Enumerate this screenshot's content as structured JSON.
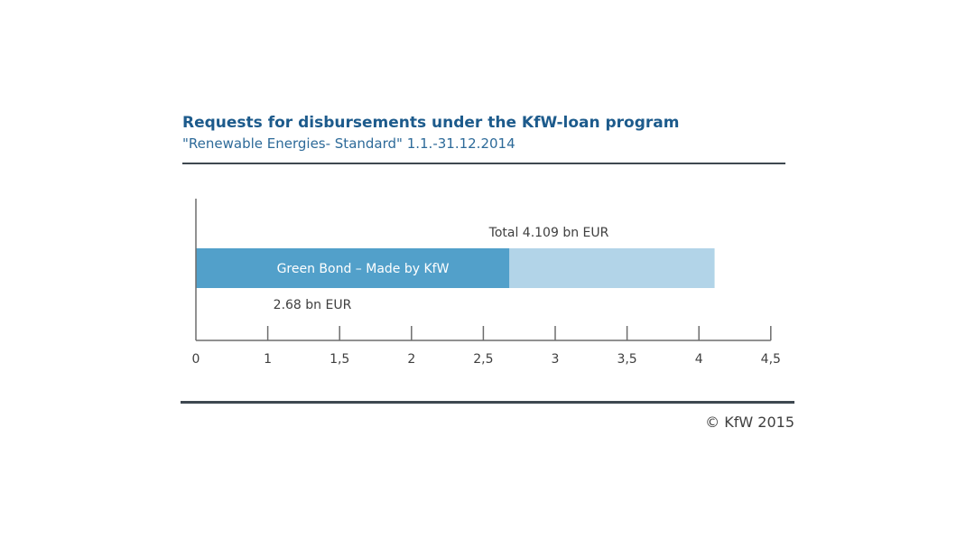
{
  "title": "Requests for disbursements under the KfW-loan program",
  "subtitle": "\"Renewable Energies- Standard\" 1.1.-31.12.2014",
  "copyright": "© KfW 2015",
  "colors": {
    "title": "#1d5b8c",
    "subtitle": "#2d6a99",
    "rule": "#3e4850",
    "axis": "#6d6d6d",
    "text": "#3f3f3f",
    "bar_total": "#b2d4e8",
    "bar_green_bond": "#52a0ca",
    "bar_label": "#ffffff"
  },
  "chart_data": {
    "type": "bar",
    "orientation": "horizontal",
    "stacked": "overlay",
    "xlim": [
      0,
      4.5
    ],
    "ticks": [
      0,
      1,
      1.5,
      2,
      2.5,
      3,
      3.5,
      4,
      4.5
    ],
    "tick_labels": [
      "0",
      "1",
      "1,5",
      "2",
      "2,5",
      "3",
      "3,5",
      "4",
      "4,5"
    ],
    "tick_positions": [
      0,
      1,
      2,
      3,
      4,
      5,
      6,
      7,
      8
    ],
    "series": [
      {
        "name": "Total",
        "value": 4.109,
        "label": "Total 4.109 bn EUR"
      },
      {
        "name": "Green Bond – Made by KfW",
        "value": 2.68,
        "label": "2.68 bn EUR"
      }
    ],
    "grid": false,
    "legend": "none"
  }
}
